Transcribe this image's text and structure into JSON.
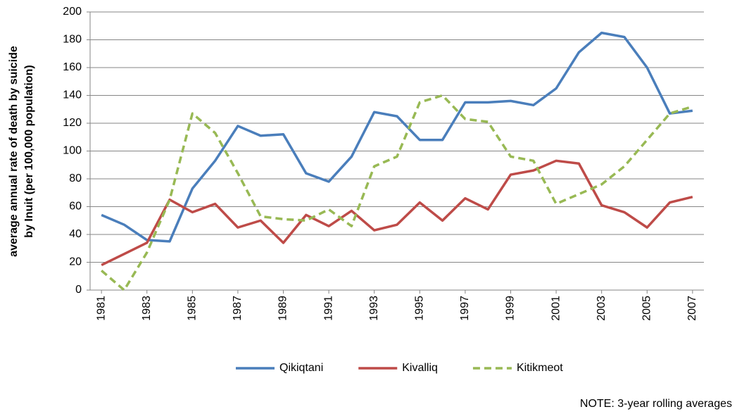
{
  "chart_data": {
    "type": "line",
    "y_label": [
      "average annual rate of death by suicide",
      "by Inuit  (per 100,000 population)"
    ],
    "note": "NOTE: 3-year rolling averages",
    "x": [
      1981,
      1982,
      1983,
      1984,
      1985,
      1986,
      1987,
      1988,
      1989,
      1990,
      1991,
      1992,
      1993,
      1994,
      1995,
      1996,
      1997,
      1998,
      1999,
      2000,
      2001,
      2002,
      2003,
      2004,
      2005,
      2006,
      2007
    ],
    "xlim": [
      1980.5,
      2007.5
    ],
    "xticks": [
      1981,
      1983,
      1985,
      1987,
      1989,
      1991,
      1993,
      1995,
      1997,
      1999,
      2001,
      2003,
      2005,
      2007
    ],
    "ylim": [
      0,
      200
    ],
    "yticks": [
      0,
      20,
      40,
      60,
      80,
      100,
      120,
      140,
      160,
      180,
      200
    ],
    "grid": true,
    "legend": "bottom",
    "series": [
      {
        "name": "Qikiqtani",
        "color": "#4a7ebb",
        "dashed": false,
        "values": [
          54,
          47,
          36,
          35,
          73,
          93,
          118,
          111,
          112,
          84,
          78,
          96,
          128,
          125,
          108,
          108,
          135,
          135,
          136,
          133,
          145,
          171,
          185,
          182,
          160,
          127,
          129
        ]
      },
      {
        "name": "Kivalliq",
        "color": "#be4b48",
        "dashed": false,
        "values": [
          18,
          26,
          34,
          65,
          56,
          62,
          45,
          50,
          34,
          54,
          46,
          57,
          43,
          47,
          63,
          50,
          66,
          58,
          83,
          86,
          93,
          91,
          61,
          56,
          45,
          63,
          67
        ]
      },
      {
        "name": "Kitikmeot",
        "color": "#98b954",
        "dashed": true,
        "values": [
          14,
          0,
          27,
          65,
          127,
          113,
          84,
          53,
          51,
          50,
          58,
          46,
          89,
          96,
          135,
          140,
          123,
          121,
          96,
          93,
          62,
          69,
          76,
          89,
          108,
          127,
          132
        ]
      }
    ]
  }
}
